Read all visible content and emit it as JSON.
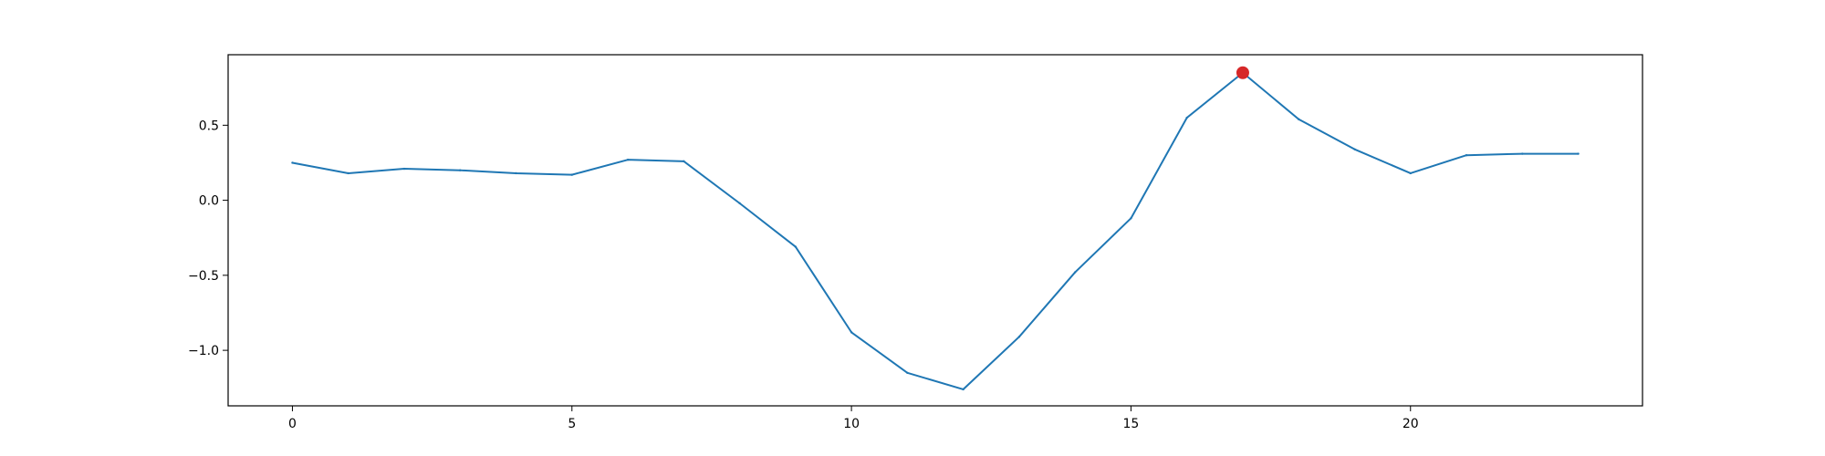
{
  "chart_data": {
    "type": "line",
    "title": "",
    "xlabel": "",
    "ylabel": "",
    "xlim": [
      -1.15,
      24.15
    ],
    "ylim": [
      -1.37,
      0.97
    ],
    "xticks": [
      0,
      5,
      10,
      15,
      20
    ],
    "yticks": [
      -1.0,
      -0.5,
      0.0,
      0.5
    ],
    "xtick_labels": [
      "0",
      "5",
      "10",
      "15",
      "20"
    ],
    "ytick_labels": [
      "−1.0",
      "−0.5",
      "0.0",
      "0.5"
    ],
    "grid": false,
    "series": [
      {
        "color": "#1f77b4",
        "x": [
          0,
          1,
          2,
          3,
          4,
          5,
          6,
          7,
          8,
          9,
          10,
          11,
          12,
          13,
          14,
          15,
          16,
          17,
          18,
          19,
          20,
          21,
          22,
          23
        ],
        "y": [
          0.25,
          0.18,
          0.21,
          0.2,
          0.18,
          0.17,
          0.27,
          0.26,
          -0.02,
          -0.31,
          -0.88,
          -1.15,
          -1.26,
          -0.91,
          -0.48,
          -0.12,
          0.55,
          0.85,
          0.54,
          0.34,
          0.18,
          0.3,
          0.31,
          0.31
        ]
      }
    ],
    "highlight": {
      "x": 17,
      "y": 0.85,
      "color": "#d62728"
    }
  }
}
